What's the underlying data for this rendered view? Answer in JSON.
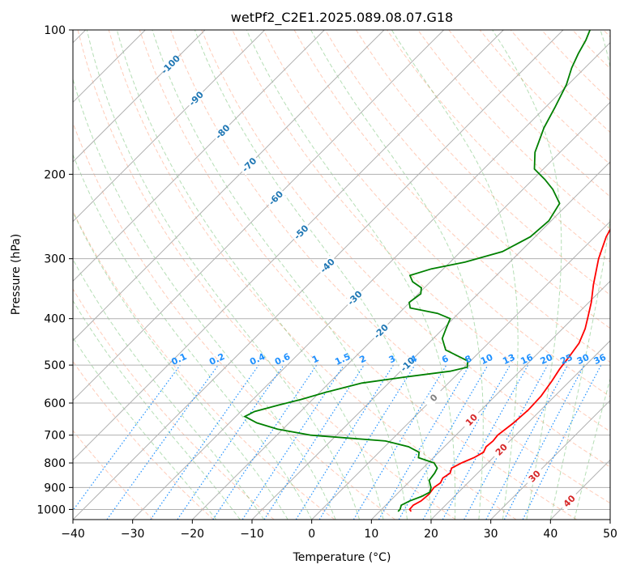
{
  "chart_data": {
    "type": "line",
    "title": "wetPf2_C2E1.2025.089.08.07.G18",
    "xlabel": "Temperature (°C)",
    "ylabel": "Pressure (hPa)",
    "xlim": [
      -40,
      50
    ],
    "ylim": [
      1050,
      100
    ],
    "y_scale": "log",
    "skew": "skew-T",
    "x_ticks": [
      -40,
      -30,
      -20,
      -10,
      0,
      10,
      20,
      30,
      40,
      50
    ],
    "y_ticks": [
      100,
      200,
      300,
      400,
      500,
      600,
      700,
      800,
      900,
      1000
    ],
    "grid": true,
    "series": [
      {
        "color": "#ff0000",
        "points": [
          [
            1010,
            15.3
          ],
          [
            1000,
            14.7
          ],
          [
            980,
            14.6
          ],
          [
            960,
            15.2
          ],
          [
            930,
            15.4
          ],
          [
            900,
            15.1
          ],
          [
            880,
            15.4
          ],
          [
            860,
            15.0
          ],
          [
            840,
            15.4
          ],
          [
            820,
            14.8
          ],
          [
            800,
            15.6
          ],
          [
            780,
            16.8
          ],
          [
            760,
            17.5
          ],
          [
            740,
            17.0
          ],
          [
            720,
            17.2
          ],
          [
            700,
            17.0
          ],
          [
            660,
            17.6
          ],
          [
            620,
            17.9
          ],
          [
            580,
            17.7
          ],
          [
            540,
            17.0
          ],
          [
            510,
            16.3
          ],
          [
            480,
            15.8
          ],
          [
            450,
            15.2
          ],
          [
            420,
            13.8
          ],
          [
            400,
            12.5
          ],
          [
            370,
            10.4
          ],
          [
            340,
            7.8
          ],
          [
            300,
            4.3
          ],
          [
            270,
            1.9
          ],
          [
            250,
            0.7
          ],
          [
            230,
            -0.6
          ],
          [
            220,
            -0.9
          ],
          [
            210,
            -0.5
          ],
          [
            200,
            -0.1
          ],
          [
            185,
            -0.4
          ],
          [
            170,
            -1.2
          ],
          [
            160,
            -1.4
          ],
          [
            150,
            -0.7
          ],
          [
            140,
            0.3
          ],
          [
            130,
            1.3
          ],
          [
            120,
            2.1
          ],
          [
            112,
            3.6
          ],
          [
            105,
            5.0
          ],
          [
            100,
            5.5
          ]
        ]
      },
      {
        "color": "#008000",
        "points": [
          [
            1010,
            13.1
          ],
          [
            1000,
            13.1
          ],
          [
            980,
            12.6
          ],
          [
            960,
            13.3
          ],
          [
            940,
            14.5
          ],
          [
            920,
            15.2
          ],
          [
            900,
            14.6
          ],
          [
            870,
            13.1
          ],
          [
            840,
            12.8
          ],
          [
            820,
            12.4
          ],
          [
            800,
            11.0
          ],
          [
            780,
            7.5
          ],
          [
            760,
            6.7
          ],
          [
            740,
            4.0
          ],
          [
            720,
            -0.8
          ],
          [
            700,
            -14.3
          ],
          [
            680,
            -20.9
          ],
          [
            660,
            -25.4
          ],
          [
            640,
            -28.5
          ],
          [
            625,
            -27.7
          ],
          [
            605,
            -24.6
          ],
          [
            590,
            -22.0
          ],
          [
            570,
            -19.0
          ],
          [
            545,
            -14.5
          ],
          [
            530,
            -8.5
          ],
          [
            515,
            -1.7
          ],
          [
            505,
            0.5
          ],
          [
            490,
            -0.5
          ],
          [
            465,
            -6.0
          ],
          [
            440,
            -8.5
          ],
          [
            420,
            -9.5
          ],
          [
            400,
            -10.5
          ],
          [
            390,
            -13.5
          ],
          [
            380,
            -19.0
          ],
          [
            370,
            -20.1
          ],
          [
            355,
            -19.6
          ],
          [
            345,
            -20.5
          ],
          [
            335,
            -23.0
          ],
          [
            325,
            -24.5
          ],
          [
            315,
            -22.0
          ],
          [
            305,
            -17.5
          ],
          [
            290,
            -13.0
          ],
          [
            270,
            -10.8
          ],
          [
            250,
            -10.4
          ],
          [
            230,
            -11.5
          ],
          [
            215,
            -15.0
          ],
          [
            205,
            -18.0
          ],
          [
            195,
            -21.5
          ],
          [
            180,
            -24.2
          ],
          [
            160,
            -26.8
          ],
          [
            145,
            -28.4
          ],
          [
            130,
            -30.3
          ],
          [
            120,
            -32.2
          ],
          [
            112,
            -33.5
          ],
          [
            105,
            -34.5
          ],
          [
            100,
            -35.5
          ]
        ]
      }
    ],
    "isotherm_labels": [
      "-100",
      "-90",
      "-80",
      "-70",
      "-60",
      "-50",
      "-40",
      "-30",
      "-20",
      "-10",
      "0",
      "10",
      "20",
      "30",
      "40"
    ],
    "mixing_ratio_labels": [
      "0.1",
      "0.2",
      "0.4",
      "0.6",
      "1",
      "1.5",
      "2",
      "3",
      "4",
      "6",
      "8",
      "10",
      "13",
      "16",
      "20",
      "25",
      "30",
      "36"
    ],
    "mixing_ratio_values": [
      0.1,
      0.2,
      0.4,
      0.6,
      1,
      1.5,
      2,
      3,
      4,
      6,
      8,
      10,
      13,
      16,
      20,
      25,
      30,
      36
    ]
  },
  "colors": {
    "temperature": "#ff0000",
    "dewpoint": "#008000",
    "isotherm_label_cold": "#1f77b4",
    "isotherm_label_warm": "#d62728",
    "isotherm_label_zero": "#808080",
    "mixing_ratio": "#1e90ff",
    "dry_adiabat": "#ff7f50",
    "moist_adiabat": "#2ca02c",
    "grid": "#b0b0b0"
  }
}
